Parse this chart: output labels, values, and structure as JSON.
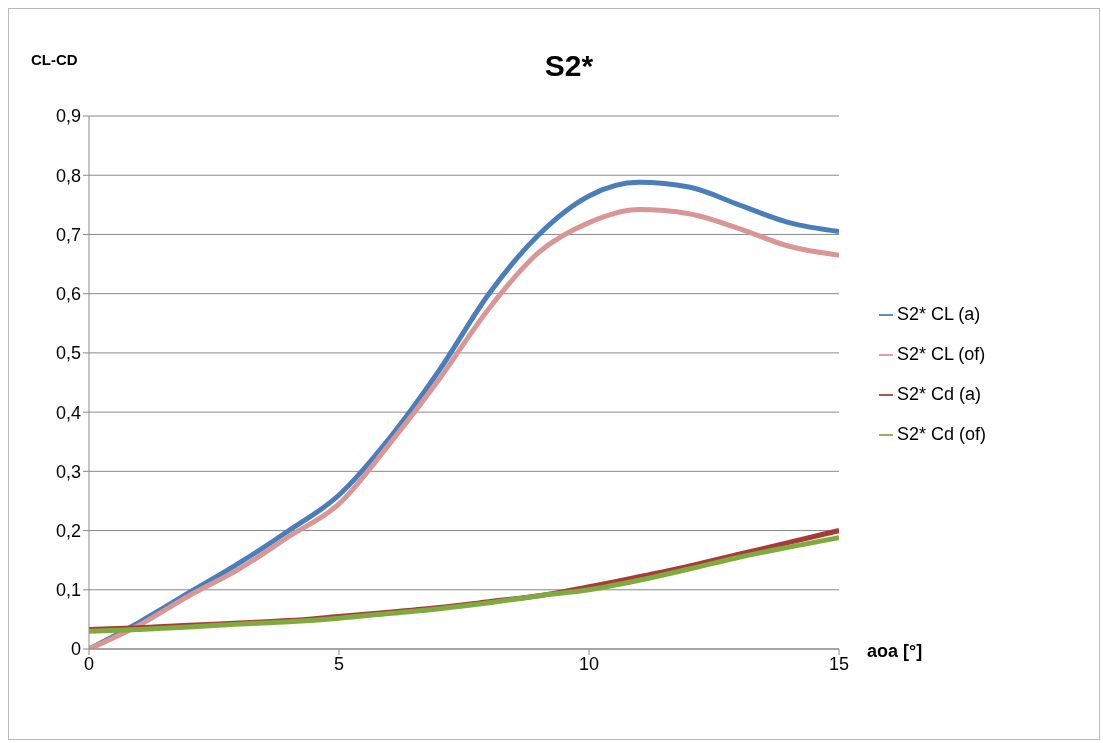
{
  "chart_data": {
    "type": "line",
    "title": "S2*",
    "ylabel": "CL-CD",
    "xlabel": "aoa [°]",
    "x": [
      0,
      1,
      2,
      3,
      4,
      5,
      6,
      7,
      8,
      9,
      10,
      11,
      12,
      13,
      14,
      15
    ],
    "series": [
      {
        "name": "S2* CL (a)",
        "color": "#4a7ebb",
        "values": [
          0,
          0.045,
          0.095,
          0.145,
          0.2,
          0.26,
          0.355,
          0.47,
          0.6,
          0.7,
          0.765,
          0.788,
          0.78,
          0.75,
          0.72,
          0.705
        ]
      },
      {
        "name": "S2* CL (of)",
        "color": "#d99694",
        "values": [
          0,
          0.04,
          0.09,
          0.135,
          0.19,
          0.245,
          0.345,
          0.455,
          0.575,
          0.67,
          0.72,
          0.742,
          0.735,
          0.71,
          0.68,
          0.665
        ]
      },
      {
        "name": "S2* Cd (a)",
        "color": "#a83a38",
        "values": [
          0.033,
          0.036,
          0.04,
          0.044,
          0.048,
          0.055,
          0.062,
          0.07,
          0.08,
          0.09,
          0.105,
          0.122,
          0.14,
          0.16,
          0.18,
          0.2
        ]
      },
      {
        "name": "S2* Cd (of)",
        "color": "#7eaa3e",
        "values": [
          0.03,
          0.033,
          0.037,
          0.042,
          0.046,
          0.052,
          0.06,
          0.068,
          0.078,
          0.09,
          0.1,
          0.116,
          0.135,
          0.155,
          0.172,
          0.188
        ]
      }
    ],
    "xlim": [
      0,
      15
    ],
    "xticks": [
      0,
      5,
      10,
      15
    ],
    "ylim": [
      0,
      0.9
    ],
    "yticks": [
      0,
      {
        "value": 0.1,
        "label": "0,1"
      },
      {
        "value": 0.2,
        "label": "0,2"
      },
      {
        "value": 0.3,
        "label": "0,3"
      },
      {
        "value": 0.4,
        "label": "0,4"
      },
      {
        "value": 0.5,
        "label": "0,5"
      },
      {
        "value": 0.6,
        "label": "0,6"
      },
      {
        "value": 0.7,
        "label": "0,7"
      },
      {
        "value": 0.8,
        "label": "0,8"
      },
      {
        "value": 0.9,
        "label": "0,9"
      }
    ],
    "grid": "y",
    "legend": "right",
    "marker": "none",
    "line_style": "solid"
  }
}
